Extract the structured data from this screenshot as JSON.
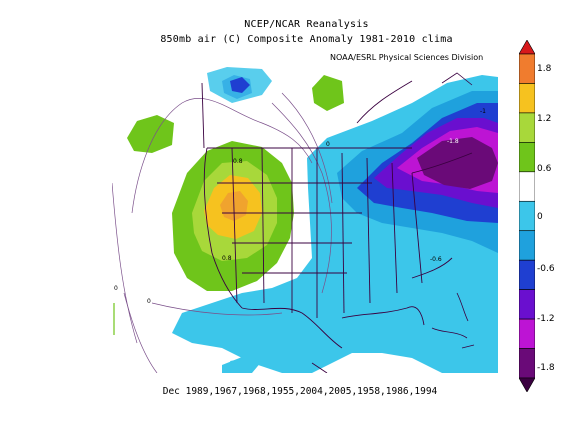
{
  "header": {
    "line1": "NCEP/NCAR Reanalysis",
    "line2": "850mb air (C) Composite Anomaly 1981-2010 clima",
    "credit": "NOAA/ESRL Physical Sciences Division"
  },
  "footer": {
    "years": "Dec 1989,1967,1968,1955,2004,2005,1958,1986,1994"
  },
  "colorbar": {
    "labels": [
      "1.8",
      "1.2",
      "0.6",
      "0",
      "-0.6",
      "-1.2",
      "-1.8"
    ],
    "colors": [
      "#d7191c",
      "#f07c2e",
      "#f6c21f",
      "#a8d83a",
      "#6fc51b",
      "#ffffff",
      "#3cc6ea",
      "#1fa1dd",
      "#1f3fd1",
      "#6a0fcf",
      "#bd14d4",
      "#6a0a78",
      "#3a0040"
    ]
  },
  "map_labels": {
    "pos_center": "0.8",
    "pos_south": "0.8",
    "neg_east": "-0.6",
    "neg_core": "-1.8",
    "neg_ne": "-1",
    "zero_west": "0",
    "zero_sw": "0",
    "zero_north": "0"
  }
}
